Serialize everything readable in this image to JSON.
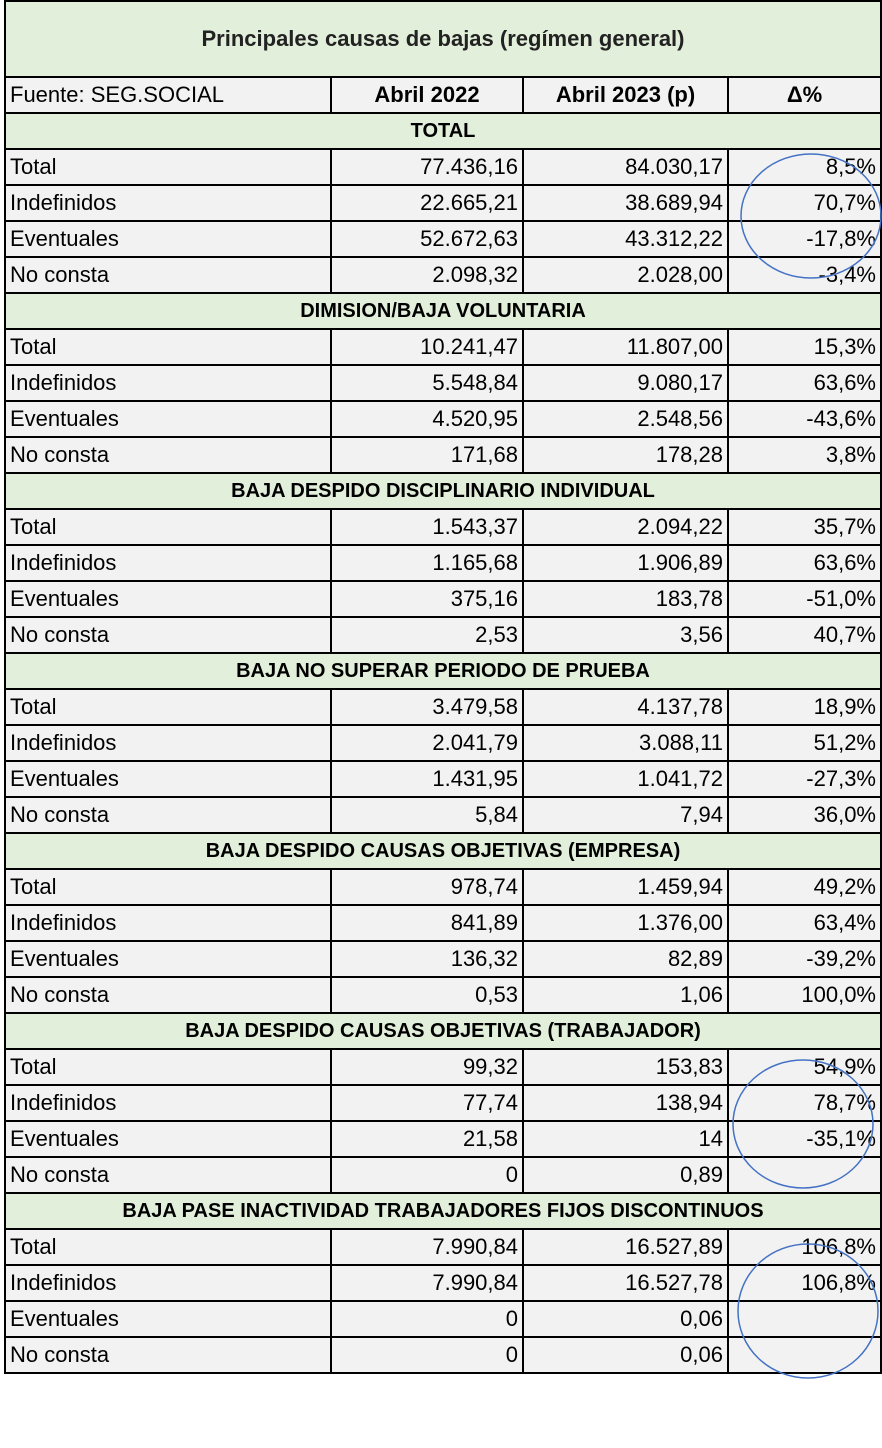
{
  "title": "Principales causas de bajas (regímen general)",
  "header": {
    "source": "Fuente: SEG.SOCIAL",
    "col1": "Abril 2022",
    "col2": "Abril 2023 (p)",
    "col3": "Δ%"
  },
  "colors": {
    "section_bg": "#e2efda",
    "cell_bg": "#f2f2f2",
    "annotation_circle": "#4472c4"
  },
  "sections": [
    {
      "name": "TOTAL",
      "rows": [
        [
          "Total",
          "77.436,16",
          "84.030,17",
          "8,5%"
        ],
        [
          "Indefinidos",
          "22.665,21",
          "38.689,94",
          "70,7%"
        ],
        [
          "Eventuales",
          "52.672,63",
          "43.312,22",
          "-17,8%"
        ],
        [
          "No consta",
          "2.098,32",
          "2.028,00",
          "-3,4%"
        ]
      ]
    },
    {
      "name": "DIMISION/BAJA VOLUNTARIA",
      "rows": [
        [
          "Total",
          "10.241,47",
          "11.807,00",
          "15,3%"
        ],
        [
          "Indefinidos",
          "5.548,84",
          "9.080,17",
          "63,6%"
        ],
        [
          "Eventuales",
          "4.520,95",
          "2.548,56",
          "-43,6%"
        ],
        [
          "No consta",
          "171,68",
          "178,28",
          "3,8%"
        ]
      ]
    },
    {
      "name": "BAJA DESPIDO DISCIPLINARIO INDIVIDUAL",
      "rows": [
        [
          "Total",
          "1.543,37",
          "2.094,22",
          "35,7%"
        ],
        [
          "Indefinidos",
          "1.165,68",
          "1.906,89",
          "63,6%"
        ],
        [
          "Eventuales",
          "375,16",
          "183,78",
          "-51,0%"
        ],
        [
          "No consta",
          "2,53",
          "3,56",
          "40,7%"
        ]
      ]
    },
    {
      "name": "BAJA NO SUPERAR PERIODO DE PRUEBA",
      "rows": [
        [
          "Total",
          "3.479,58",
          "4.137,78",
          "18,9%"
        ],
        [
          "Indefinidos",
          "2.041,79",
          "3.088,11",
          "51,2%"
        ],
        [
          "Eventuales",
          "1.431,95",
          "1.041,72",
          "-27,3%"
        ],
        [
          "No consta",
          "5,84",
          "7,94",
          "36,0%"
        ]
      ]
    },
    {
      "name": "BAJA DESPIDO CAUSAS OBJETIVAS (EMPRESA)",
      "rows": [
        [
          "Total",
          "978,74",
          "1.459,94",
          "49,2%"
        ],
        [
          "Indefinidos",
          "841,89",
          "1.376,00",
          "63,4%"
        ],
        [
          "Eventuales",
          "136,32",
          "82,89",
          "-39,2%"
        ],
        [
          "No consta",
          "0,53",
          "1,06",
          "100,0%"
        ]
      ]
    },
    {
      "name": "BAJA DESPIDO CAUSAS OBJETIVAS (TRABAJADOR)",
      "rows": [
        [
          "Total",
          "99,32",
          "153,83",
          "54,9%"
        ],
        [
          "Indefinidos",
          "77,74",
          "138,94",
          "78,7%"
        ],
        [
          "Eventuales",
          "21,58",
          "14",
          "-35,1%"
        ],
        [
          "No consta",
          "0",
          "0,89",
          ""
        ]
      ]
    },
    {
      "name": "BAJA PASE INACTIVIDAD TRABAJADORES FIJOS DISCONTINUOS",
      "rows": [
        [
          "Total",
          "7.990,84",
          "16.527,89",
          "106,8%"
        ],
        [
          "Indefinidos",
          "7.990,84",
          "16.527,78",
          "106,8%"
        ],
        [
          "Eventuales",
          "0",
          "0,06",
          ""
        ],
        [
          "No consta",
          "0",
          "0,06",
          ""
        ]
      ]
    }
  ]
}
